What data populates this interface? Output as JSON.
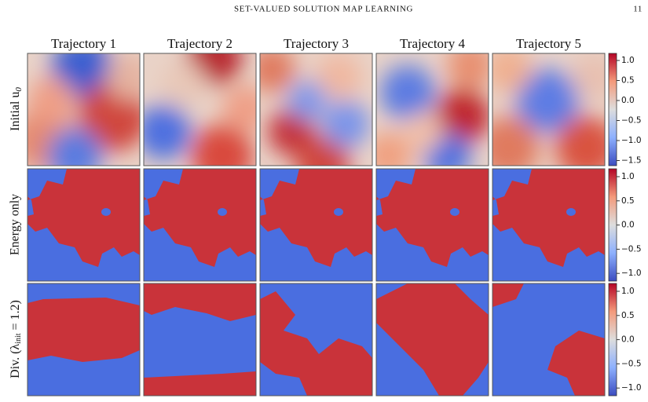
{
  "header": {
    "title": "SET-VALUED SOLUTION MAP LEARNING",
    "page_number": "11"
  },
  "columns": [
    "Trajectory 1",
    "Trajectory 2",
    "Trajectory 3",
    "Trajectory 4",
    "Trajectory 5"
  ],
  "rows": [
    {
      "label": "Initial u",
      "sub": "0",
      "colorbar_ticks": [
        "1.0",
        "0.5",
        "0.0",
        "−0.5",
        "−1.0",
        "−1.5"
      ]
    },
    {
      "label": "Energy only",
      "colorbar_ticks": [
        "1.0",
        "0.5",
        "0.0",
        "−0.5",
        "−1.0"
      ]
    },
    {
      "label": "Div. (λ",
      "sub": "init",
      "tail": " = 1.2)",
      "colorbar_ticks": [
        "1.0",
        "0.5",
        "0.0",
        "−0.5",
        "−1.0"
      ]
    }
  ]
}
